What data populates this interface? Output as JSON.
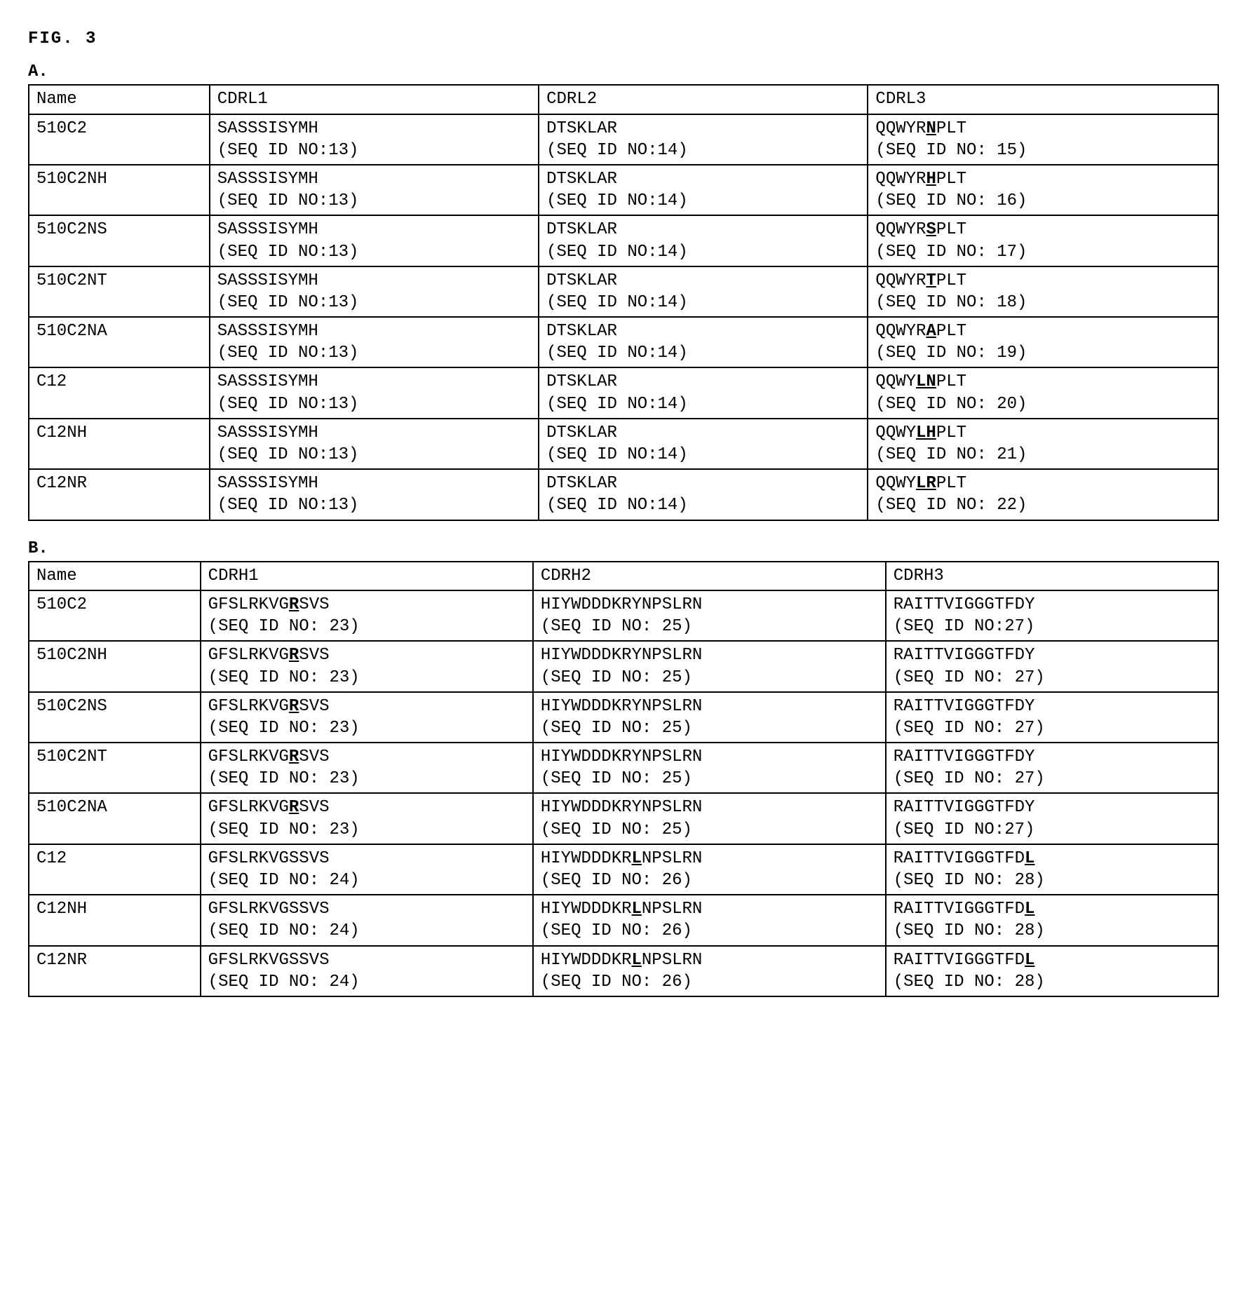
{
  "figure_title": "FIG. 3",
  "sections": {
    "A": {
      "label": "A.",
      "headers": [
        "Name",
        "CDRL1",
        "CDRL2",
        "CDRL3"
      ],
      "rows": [
        {
          "name": "510C2",
          "cdr1": {
            "seq": "SASSSISYMH",
            "seqid": "(SEQ ID NO:13)"
          },
          "cdr2": {
            "seq": "DTSKLAR",
            "seqid": "(SEQ ID NO:14)"
          },
          "cdr3": {
            "prefix": "QQWYR",
            "bold": "N",
            "suffix": "PLT",
            "seqid": "(SEQ ID NO: 15)"
          }
        },
        {
          "name": "510C2NH",
          "cdr1": {
            "seq": "SASSSISYMH",
            "seqid": "(SEQ ID NO:13)"
          },
          "cdr2": {
            "seq": "DTSKLAR",
            "seqid": "(SEQ ID NO:14)"
          },
          "cdr3": {
            "prefix": "QQWYR",
            "bold": "H",
            "suffix": "PLT",
            "seqid": "(SEQ ID NO: 16)"
          }
        },
        {
          "name": "510C2NS",
          "cdr1": {
            "seq": "SASSSISYMH",
            "seqid": "(SEQ ID NO:13)"
          },
          "cdr2": {
            "seq": "DTSKLAR",
            "seqid": "(SEQ ID NO:14)"
          },
          "cdr3": {
            "prefix": "QQWYR",
            "bold": "S",
            "suffix": "PLT",
            "seqid": "(SEQ ID NO: 17)"
          }
        },
        {
          "name": "510C2NT",
          "cdr1": {
            "seq": "SASSSISYMH",
            "seqid": "(SEQ ID NO:13)"
          },
          "cdr2": {
            "seq": "DTSKLAR",
            "seqid": "(SEQ ID NO:14)"
          },
          "cdr3": {
            "prefix": "QQWYR",
            "bold": "T",
            "suffix": "PLT",
            "seqid": "(SEQ ID NO: 18)"
          }
        },
        {
          "name": "510C2NA",
          "cdr1": {
            "seq": "SASSSISYMH",
            "seqid": "(SEQ ID NO:13)"
          },
          "cdr2": {
            "seq": "DTSKLAR",
            "seqid": "(SEQ ID NO:14)"
          },
          "cdr3": {
            "prefix": "QQWYR",
            "bold": "A",
            "suffix": "PLT",
            "seqid": "(SEQ ID NO: 19)"
          }
        },
        {
          "name": "C12",
          "cdr1": {
            "seq": "SASSSISYMH",
            "seqid": "(SEQ ID NO:13)"
          },
          "cdr2": {
            "seq": "DTSKLAR",
            "seqid": "(SEQ ID NO:14)"
          },
          "cdr3": {
            "prefix": "QQWY",
            "bold": "LN",
            "suffix": "PLT",
            "seqid": "(SEQ ID NO: 20)"
          }
        },
        {
          "name": "C12NH",
          "cdr1": {
            "seq": "SASSSISYMH",
            "seqid": "(SEQ ID NO:13)"
          },
          "cdr2": {
            "seq": "DTSKLAR",
            "seqid": "(SEQ ID NO:14)"
          },
          "cdr3": {
            "prefix": "QQWY",
            "bold": "LH",
            "suffix": "PLT",
            "seqid": "(SEQ ID NO: 21)"
          }
        },
        {
          "name": "C12NR",
          "cdr1": {
            "seq": "SASSSISYMH",
            "seqid": "(SEQ ID NO:13)"
          },
          "cdr2": {
            "seq": "DTSKLAR",
            "seqid": "(SEQ ID NO:14)"
          },
          "cdr3": {
            "prefix": "QQWY",
            "bold": "LR",
            "suffix": "PLT",
            "seqid": "(SEQ ID NO: 22)"
          }
        }
      ]
    },
    "B": {
      "label": "B.",
      "headers": [
        "Name",
        "CDRH1",
        "CDRH2",
        "CDRH3"
      ],
      "rows": [
        {
          "name": "510C2",
          "cdr1": {
            "prefix": "GFSLRKVG",
            "bold": "R",
            "suffix": "SVS",
            "seqid": "(SEQ ID NO: 23)"
          },
          "cdr2": {
            "seq": "HIYWDDDKRYNPSLRN",
            "seqid": "(SEQ ID NO: 25)"
          },
          "cdr3": {
            "seq": "RAITTVIGGGTFDY",
            "seqid": "(SEQ ID NO:27)"
          }
        },
        {
          "name": "510C2NH",
          "cdr1": {
            "prefix": "GFSLRKVG",
            "bold": "R",
            "suffix": "SVS",
            "seqid": "(SEQ ID NO: 23)"
          },
          "cdr2": {
            "seq": "HIYWDDDKRYNPSLRN",
            "seqid": "(SEQ ID NO: 25)"
          },
          "cdr3": {
            "seq": "RAITTVIGGGTFDY",
            "seqid": "(SEQ ID NO: 27)"
          }
        },
        {
          "name": "510C2NS",
          "cdr1": {
            "prefix": "GFSLRKVG",
            "bold": "R",
            "suffix": "SVS",
            "seqid": "(SEQ ID NO: 23)"
          },
          "cdr2": {
            "seq": "HIYWDDDKRYNPSLRN",
            "seqid": "(SEQ ID NO: 25)"
          },
          "cdr3": {
            "seq": "RAITTVIGGGTFDY",
            "seqid": "(SEQ ID NO: 27)"
          }
        },
        {
          "name": "510C2NT",
          "cdr1": {
            "prefix": "GFSLRKVG",
            "bold": "R",
            "suffix": "SVS",
            "seqid": "(SEQ ID NO: 23)"
          },
          "cdr2": {
            "seq": "HIYWDDDKRYNPSLRN",
            "seqid": "(SEQ ID NO: 25)"
          },
          "cdr3": {
            "seq": "RAITTVIGGGTFDY",
            "seqid": "(SEQ ID NO: 27)"
          }
        },
        {
          "name": "510C2NA",
          "cdr1": {
            "prefix": "GFSLRKVG",
            "bold": "R",
            "suffix": "SVS",
            "seqid": "(SEQ ID NO: 23)"
          },
          "cdr2": {
            "seq": "HIYWDDDKRYNPSLRN",
            "seqid": "(SEQ ID NO: 25)"
          },
          "cdr3": {
            "seq": "RAITTVIGGGTFDY",
            "seqid": "(SEQ ID NO:27)"
          }
        },
        {
          "name": "C12",
          "cdr1": {
            "seq": "GFSLRKVGSSVS",
            "seqid": "(SEQ ID NO: 24)"
          },
          "cdr2": {
            "prefix": "HIYWDDDKR",
            "bold": "L",
            "suffix": "NPSLRN",
            "seqid": "(SEQ ID NO: 26)"
          },
          "cdr3": {
            "prefix": "RAITTVIGGGTFD",
            "bold": "L",
            "suffix": "",
            "seqid": "(SEQ ID NO: 28)"
          }
        },
        {
          "name": "C12NH",
          "cdr1": {
            "seq": "GFSLRKVGSSVS",
            "seqid": "(SEQ ID NO: 24)"
          },
          "cdr2": {
            "prefix": "HIYWDDDKR",
            "bold": "L",
            "suffix": "NPSLRN",
            "seqid": "(SEQ ID NO: 26)"
          },
          "cdr3": {
            "prefix": "RAITTVIGGGTFD",
            "bold": "L",
            "suffix": "",
            "seqid": "(SEQ ID NO: 28)"
          }
        },
        {
          "name": "C12NR",
          "cdr1": {
            "seq": "GFSLRKVGSSVS",
            "seqid": "(SEQ ID NO: 24)"
          },
          "cdr2": {
            "prefix": "HIYWDDDKR",
            "bold": "L",
            "suffix": "NPSLRN",
            "seqid": "(SEQ ID NO: 26)"
          },
          "cdr3": {
            "prefix": "RAITTVIGGGTFD",
            "bold": "L",
            "suffix": "",
            "seqid": "(SEQ ID NO: 28)"
          }
        }
      ]
    }
  }
}
